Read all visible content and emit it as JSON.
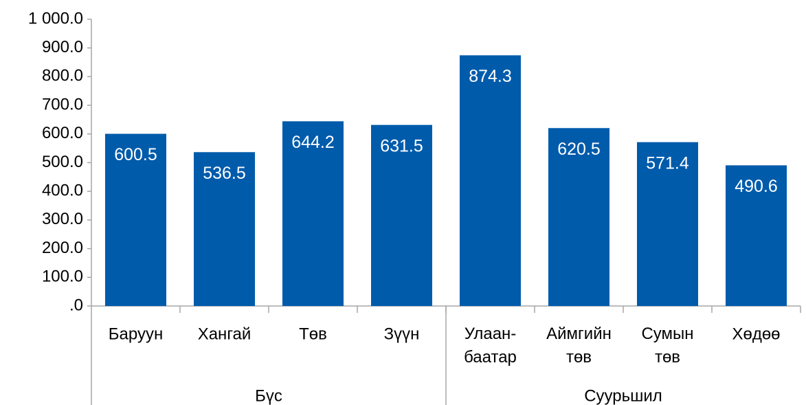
{
  "chart_data": {
    "type": "bar",
    "categories": [
      "Баруун",
      "Хангай",
      "Төв",
      "Зүүн",
      "Улаан-\nбаатар",
      "Аймгийн\nтөв",
      "Сумын\nтөв",
      "Хөдөө"
    ],
    "values": [
      600.5,
      536.5,
      644.2,
      631.5,
      874.3,
      620.5,
      571.4,
      490.6
    ],
    "groups": [
      {
        "label": "Бүс",
        "size": 4
      },
      {
        "label": "Суурьшил",
        "size": 4
      }
    ],
    "color": "#005bab",
    "ylim": [
      0,
      1000
    ],
    "yticks": [
      {
        "value": 0,
        "label": ".0"
      },
      {
        "value": 100,
        "label": "100.0"
      },
      {
        "value": 200,
        "label": "200.0"
      },
      {
        "value": 300,
        "label": "300.0"
      },
      {
        "value": 400,
        "label": "400.0"
      },
      {
        "value": 500,
        "label": "500.0"
      },
      {
        "value": 600,
        "label": "600.0"
      },
      {
        "value": 700,
        "label": "700.0"
      },
      {
        "value": 800,
        "label": "800.0"
      },
      {
        "value": 900,
        "label": "900.0"
      },
      {
        "value": 1000,
        "label": "1 000.0"
      }
    ],
    "grid": false
  }
}
